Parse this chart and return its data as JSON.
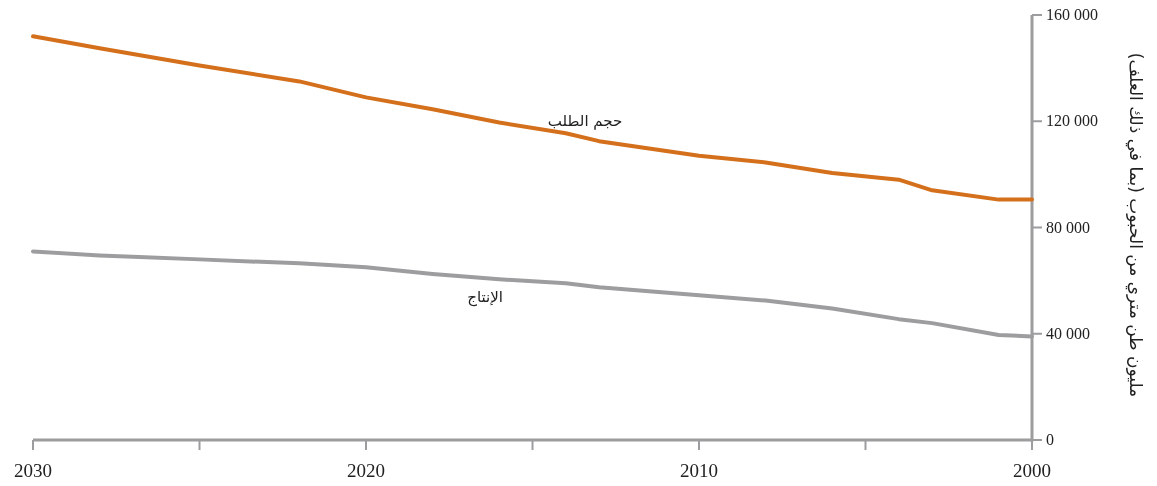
{
  "chart_data": {
    "type": "line",
    "ylabel": "مليون طن متري من الحبوب (بما في ذلك العلف)",
    "x": [
      2030,
      2028,
      2025,
      2022,
      2020,
      2018,
      2016,
      2014,
      2013,
      2010,
      2008,
      2006,
      2004,
      2003,
      2001,
      2000
    ],
    "series": [
      {
        "name": "حجم الطلب",
        "color": "#d4701c",
        "values": [
          152000,
          147500,
          141000,
          135000,
          129000,
          124500,
          119500,
          115500,
          112500,
          107000,
          104500,
          100500,
          98000,
          94000,
          90500,
          90500
        ]
      },
      {
        "name": "الإنتاج",
        "color": "#9d9d9f",
        "values": [
          71000,
          69500,
          68000,
          66500,
          65000,
          62500,
          60500,
          59000,
          57500,
          54500,
          52500,
          49500,
          45500,
          44000,
          39500,
          39000
        ]
      }
    ],
    "xlim": [
      2030,
      2000
    ],
    "xticks": [
      2030,
      {
        "value": 2025,
        "label": null
      },
      2020,
      {
        "value": 2015,
        "label": null
      },
      2010,
      {
        "value": 2005,
        "label": null
      },
      2000
    ],
    "ylim": [
      0,
      160000
    ],
    "yticks": [
      0,
      {
        "value": 40000,
        "label": "40 000"
      },
      {
        "value": 80000,
        "label": "80 000"
      },
      {
        "value": 120000,
        "label": "120 000"
      },
      {
        "value": 160000,
        "label": "160 000"
      }
    ],
    "grid": false,
    "legend": false,
    "marker": "none",
    "line_style": "solid"
  }
}
